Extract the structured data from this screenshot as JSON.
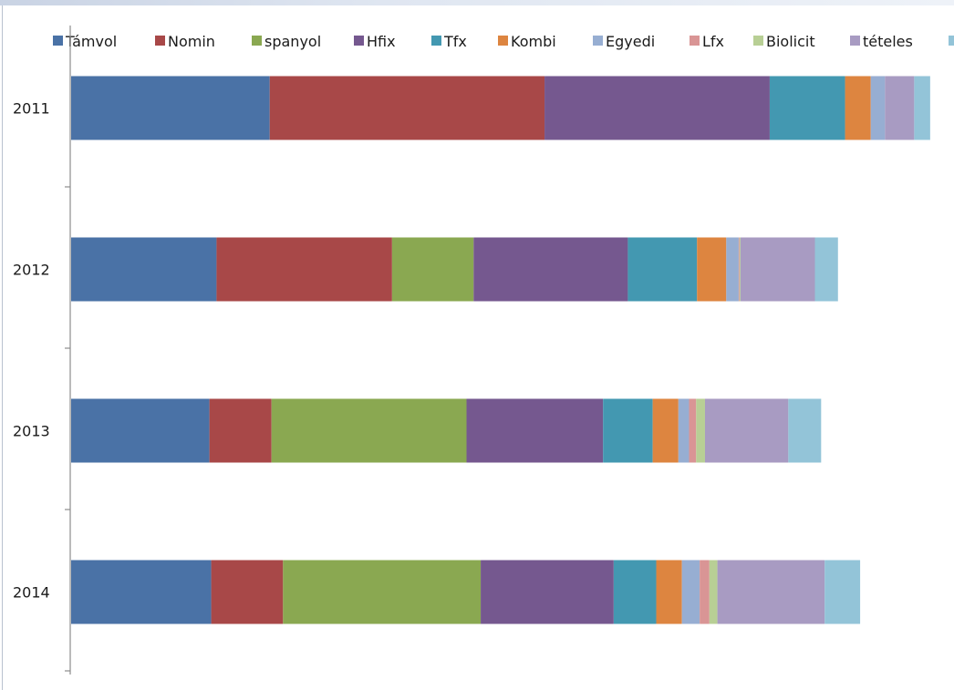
{
  "chart_data": {
    "type": "bar",
    "orientation": "horizontal",
    "stacked": true,
    "title": "",
    "xlabel": "",
    "ylabel": "",
    "categories": [
      "2011",
      "2012",
      "2013",
      "2014"
    ],
    "series": [
      {
        "name": "Támvol",
        "color": "#4a72a6",
        "values": [
          22.4,
          16.4,
          15.6,
          15.8
        ]
      },
      {
        "name": "Nomin",
        "color": "#a84848",
        "values": [
          31.0,
          19.8,
          7.0,
          8.1
        ]
      },
      {
        "name": "spanyol",
        "color": "#8aa851",
        "values": [
          0,
          9.2,
          22.0,
          22.3
        ]
      },
      {
        "name": "Hfix",
        "color": "#75588f",
        "values": [
          25.4,
          17.4,
          15.4,
          15.0
        ]
      },
      {
        "name": "Tfx",
        "color": "#4398b1",
        "values": [
          8.5,
          7.8,
          5.6,
          4.8
        ]
      },
      {
        "name": "Kombi",
        "color": "#dd8540",
        "values": [
          2.9,
          3.3,
          2.9,
          2.9
        ]
      },
      {
        "name": "Egyedi",
        "color": "#97aed2",
        "values": [
          1.6,
          1.4,
          1.2,
          2.0
        ]
      },
      {
        "name": "Lfx",
        "color": "#d99595",
        "values": [
          0,
          0.1,
          0.8,
          1.1
        ]
      },
      {
        "name": "Biolicit",
        "color": "#b8cf95",
        "values": [
          0,
          0.1,
          1.0,
          0.9
        ]
      },
      {
        "name": "tételes",
        "color": "#a89bc2",
        "values": [
          3.3,
          8.4,
          9.4,
          12.1
        ]
      },
      {
        "name": "",
        "color": "#93c4d8",
        "values": [
          1.8,
          2.6,
          3.7,
          4.0
        ]
      }
    ],
    "legend_position": "top",
    "grid": false
  }
}
